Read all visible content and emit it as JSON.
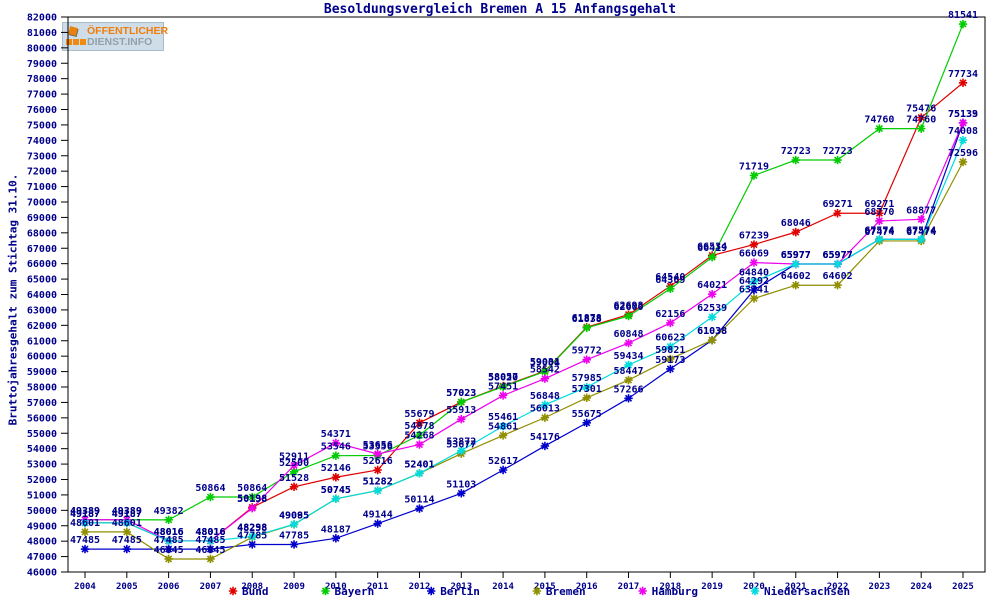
{
  "window": {
    "title": "Besoldungsvergleich Bremen A 15 Anfangsgehalt"
  },
  "logo": {
    "line1": "ÖFFENTLICHER",
    "line2": "DIENST.INFO"
  },
  "chart_data": {
    "type": "line",
    "title": "Besoldungsvergleich Bremen A 15 Anfangsgehalt",
    "xlabel": "",
    "ylabel": "Bruttojahresgehalt zum Stichtag 31.10.",
    "ylim": [
      46000,
      82000
    ],
    "ytick_step": 1000,
    "grid": false,
    "point_labels": true,
    "legend_position": "bottom",
    "text_color": "#00008b",
    "axis_color": "#000000",
    "x": [
      2004,
      2005,
      2006,
      2007,
      2008,
      2009,
      2010,
      2011,
      2012,
      2013,
      2014,
      2015,
      2016,
      2017,
      2018,
      2019,
      2020,
      2021,
      2022,
      2023,
      2024,
      2025
    ],
    "series": [
      {
        "name": "Bund",
        "color": "#e00000",
        "values": [
          49187,
          49187,
          48016,
          48016,
          50198,
          51528,
          52146,
          52616,
          55679,
          57023,
          58057,
          59031,
          61878,
          62698,
          64540,
          66534,
          67239,
          68046,
          69271,
          69271,
          75476,
          77734
        ]
      },
      {
        "name": "Bayern",
        "color": "#00cc00",
        "values": [
          49389,
          49389,
          49382,
          50864,
          50864,
          52500,
          53546,
          53556,
          54878,
          57023,
          58020,
          59004,
          61838,
          62600,
          64369,
          66419,
          71719,
          72723,
          72723,
          74760,
          74760,
          81541
        ]
      },
      {
        "name": "Berlin",
        "color": "#0000cc",
        "values": [
          47485,
          47485,
          47485,
          47485,
          47785,
          47785,
          48187,
          49144,
          50114,
          51103,
          52617,
          54176,
          55675,
          57266,
          59173,
          61038,
          64292,
          65977,
          65977,
          67574,
          67574,
          75133
        ]
      },
      {
        "name": "Bremen",
        "color": "#8f8f00",
        "values": [
          48601,
          48601,
          46845,
          46845,
          48258,
          49085,
          50745,
          51282,
          52401,
          53677,
          54861,
          56013,
          57301,
          58447,
          59821,
          61038,
          63741,
          64602,
          64602,
          67474,
          67474,
          72596
        ]
      },
      {
        "name": "Hamburg",
        "color": "#ee00ee",
        "values": [
          49389,
          49389,
          48016,
          48016,
          50138,
          52911,
          54371,
          53656,
          54268,
          55913,
          57451,
          58542,
          59772,
          60848,
          62156,
          64021,
          66069,
          65977,
          65977,
          68770,
          68877,
          75139
        ]
      },
      {
        "name": "Niedersachsen",
        "color": "#00dcdc",
        "values": [
          49187,
          49187,
          48016,
          48016,
          48298,
          49095,
          50745,
          51282,
          52401,
          53872,
          55461,
          56848,
          57985,
          59434,
          60623,
          62539,
          64840,
          65977,
          65977,
          67574,
          67574,
          74008
        ]
      }
    ]
  }
}
